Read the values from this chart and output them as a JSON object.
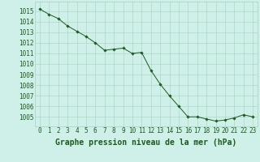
{
  "x": [
    0,
    1,
    2,
    3,
    4,
    5,
    6,
    7,
    8,
    9,
    10,
    11,
    12,
    13,
    14,
    15,
    16,
    17,
    18,
    19,
    20,
    21,
    22,
    23
  ],
  "y": [
    1015.2,
    1014.7,
    1014.3,
    1013.6,
    1013.1,
    1012.6,
    1012.0,
    1011.3,
    1011.4,
    1011.5,
    1011.0,
    1011.1,
    1009.4,
    1008.1,
    1007.0,
    1006.0,
    1005.0,
    1005.0,
    1004.8,
    1004.6,
    1004.7,
    1004.9,
    1005.2,
    1005.0
  ],
  "line_color": "#1a5c1a",
  "marker": "D",
  "marker_size": 1.8,
  "bg_color": "#cef0e8",
  "grid_color": "#a8cfc0",
  "xlabel": "Graphe pression niveau de la mer (hPa)",
  "xlabel_fontsize": 7,
  "xlabel_color": "#1a5c1a",
  "ylabel_ticks": [
    1005,
    1006,
    1007,
    1008,
    1009,
    1010,
    1011,
    1012,
    1013,
    1014,
    1015
  ],
  "ylim": [
    1004.1,
    1015.9
  ],
  "xlim": [
    -0.5,
    23.5
  ],
  "tick_fontsize": 5.5,
  "tick_color": "#1a5c1a",
  "linewidth": 0.7
}
